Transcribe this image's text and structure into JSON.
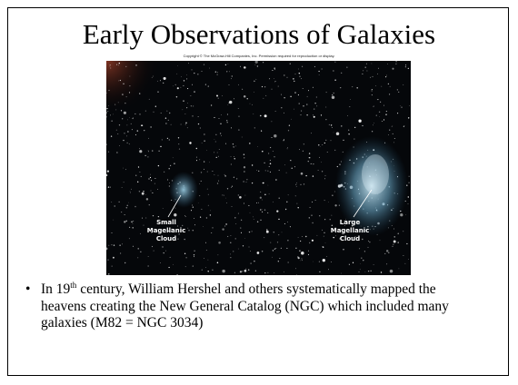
{
  "slide": {
    "title": "Early Observations of Galaxies",
    "copyright": "Copyright © The McGraw-Hill Companies, Inc. Permission required for reproduction or display.",
    "image_labels": [
      {
        "lines": [
          "Small",
          "Magellanic",
          "Cloud"
        ]
      },
      {
        "lines": [
          "Large",
          "Magellanic",
          "Cloud"
        ]
      }
    ],
    "bullet": {
      "pre": "In 19",
      "sup": "th",
      "post": " century, William Hershel and others systematically mapped the heavens creating the New General Catalog (NGC) which included many galaxies (M82 = NGC 3034)"
    }
  }
}
